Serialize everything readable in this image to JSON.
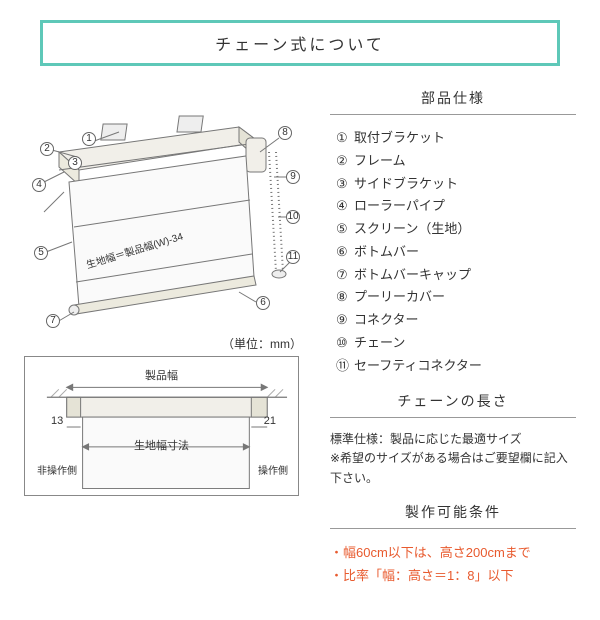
{
  "title": "チェーン式について",
  "sections": {
    "parts_header": "部品仕様",
    "chain_header": "チェーンの長さ",
    "cond_header": "製作可能条件"
  },
  "parts": [
    {
      "num": "①",
      "label": "取付ブラケット"
    },
    {
      "num": "②",
      "label": "フレーム"
    },
    {
      "num": "③",
      "label": "サイドブラケット"
    },
    {
      "num": "④",
      "label": "ローラーパイプ"
    },
    {
      "num": "⑤",
      "label": "スクリーン（生地）"
    },
    {
      "num": "⑥",
      "label": "ボトムバー"
    },
    {
      "num": "⑦",
      "label": "ボトムバーキャップ"
    },
    {
      "num": "⑧",
      "label": "プーリーカバー"
    },
    {
      "num": "⑨",
      "label": "コネクター"
    },
    {
      "num": "⑩",
      "label": "チェーン"
    },
    {
      "num": "⑪",
      "label": "セーフティコネクター"
    }
  ],
  "chain_length_note": "標準仕様：製品に応じた最適サイズ\n※希望のサイズがある場合はご要望欄に記入下さい。",
  "conditions": [
    "・幅60cm以下は、高さ200cmまで",
    "・比率「幅：高さ＝1：8」以下"
  ],
  "unit_label": "（単位：mm）",
  "iso_fabric_note": "生地幅＝製品幅(W)-34",
  "section_labels": {
    "product_width": "製品幅",
    "fabric_width": "生地幅寸法",
    "left_dim": "13",
    "right_dim": "21",
    "left_side": "非操作側",
    "right_side": "操作側"
  },
  "styling": {
    "accent_border": "#5ec8b8",
    "heading_underline": "#999999",
    "text": "#333333",
    "warn_text": "#e85a2e",
    "diagram_stroke": "#777777",
    "diagram_fill": "#f1efe9",
    "screen_fill": "#fafafa"
  }
}
